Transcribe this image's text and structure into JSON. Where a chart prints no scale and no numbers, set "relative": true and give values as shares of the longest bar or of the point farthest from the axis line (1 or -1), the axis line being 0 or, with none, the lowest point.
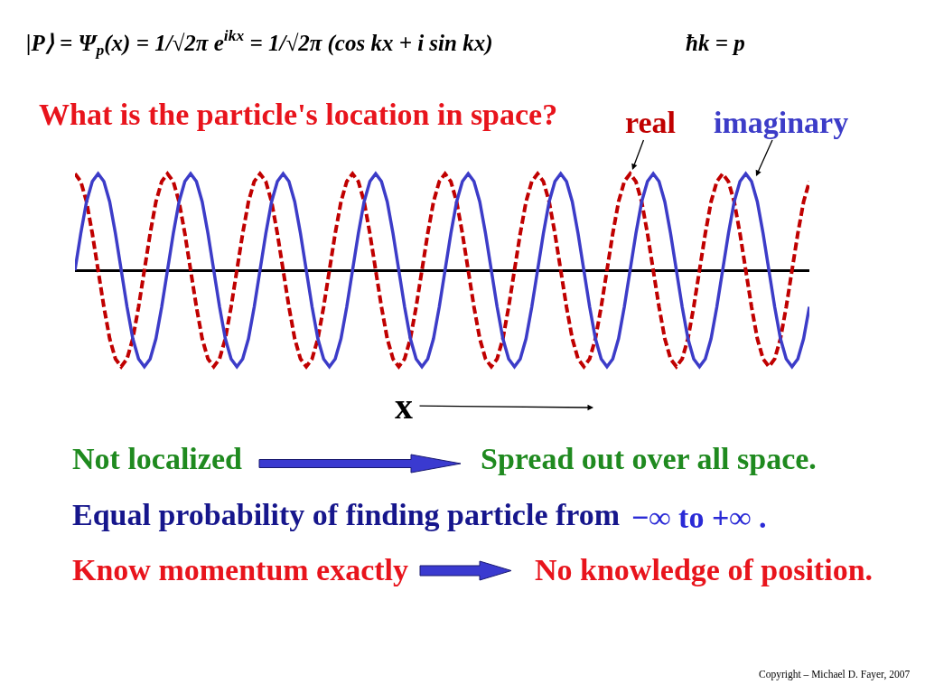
{
  "chart_data": {
    "type": "line",
    "title": "What is the particle's location in space?",
    "xlabel": "x",
    "relative": true,
    "legend": false,
    "categories": [
      null,
      null,
      null,
      null,
      null,
      null,
      null,
      null,
      null,
      null,
      null,
      null,
      null,
      null,
      null,
      null,
      null,
      null,
      null,
      null,
      null,
      null,
      null,
      null,
      null,
      null,
      null,
      null,
      null,
      null,
      null,
      null,
      null,
      null,
      null,
      null,
      null,
      null,
      null,
      null,
      null,
      null,
      null,
      null,
      null,
      null,
      null,
      null,
      null,
      null,
      null,
      null,
      null,
      null,
      null,
      null,
      null,
      null,
      null,
      null,
      null,
      null,
      null,
      null,
      null,
      null,
      null,
      null,
      null,
      null,
      null,
      null,
      null,
      null,
      null,
      null,
      null,
      null,
      null,
      null,
      null,
      null,
      null,
      null,
      null,
      null,
      null,
      null,
      null,
      null,
      null,
      null,
      null,
      null,
      null,
      null,
      null,
      null,
      null,
      null,
      null,
      null,
      null,
      null,
      null,
      null,
      null,
      null,
      null,
      null,
      null,
      null,
      null,
      null,
      null,
      null,
      null,
      null,
      null,
      null,
      null,
      null,
      null,
      null,
      null,
      null,
      null,
      null
    ],
    "series": [
      {
        "name": "real",
        "color": "#c00000",
        "line_style": "dashed",
        "values": [
          1,
          0.92,
          0.71,
          0.38,
          0,
          -0.38,
          -0.71,
          -0.92,
          -1,
          -0.92,
          -0.71,
          -0.38,
          0,
          0.38,
          0.71,
          0.92,
          1,
          0.92,
          0.71,
          0.38,
          0,
          -0.38,
          -0.71,
          -0.92,
          -1,
          -0.92,
          -0.71,
          -0.38,
          0,
          0.38,
          0.71,
          0.92,
          1,
          0.92,
          0.71,
          0.38,
          0,
          -0.38,
          -0.71,
          -0.92,
          -1,
          -0.92,
          -0.71,
          -0.38,
          0,
          0.38,
          0.71,
          0.92,
          1,
          0.92,
          0.71,
          0.38,
          0,
          -0.38,
          -0.71,
          -0.92,
          -1,
          -0.92,
          -0.71,
          -0.38,
          0,
          0.38,
          0.71,
          0.92,
          1,
          0.92,
          0.71,
          0.38,
          0,
          -0.38,
          -0.71,
          -0.92,
          -1,
          -0.92,
          -0.71,
          -0.38,
          0,
          0.38,
          0.71,
          0.92,
          1,
          0.92,
          0.71,
          0.38,
          0,
          -0.38,
          -0.71,
          -0.92,
          -1,
          -0.92,
          -0.71,
          -0.38,
          0,
          0.38,
          0.71,
          0.92,
          1,
          0.92,
          0.71,
          0.38,
          0,
          -0.38,
          -0.71,
          -0.92,
          -1,
          -0.92,
          -0.71,
          -0.38,
          0,
          0.38,
          0.71,
          0.92,
          1,
          0.92,
          0.71,
          0.38,
          0,
          -0.38,
          -0.71,
          -0.92,
          -1,
          -0.92,
          -0.71,
          -0.38,
          0,
          0.38,
          0.71,
          0.92
        ]
      },
      {
        "name": "imaginary",
        "color": "#3c3cc8",
        "line_style": "solid",
        "values": [
          0,
          0.38,
          0.71,
          0.92,
          1,
          0.92,
          0.71,
          0.38,
          0,
          -0.38,
          -0.71,
          -0.92,
          -1,
          -0.92,
          -0.71,
          -0.38,
          0,
          0.38,
          0.71,
          0.92,
          1,
          0.92,
          0.71,
          0.38,
          0,
          -0.38,
          -0.71,
          -0.92,
          -1,
          -0.92,
          -0.71,
          -0.38,
          0,
          0.38,
          0.71,
          0.92,
          1,
          0.92,
          0.71,
          0.38,
          0,
          -0.38,
          -0.71,
          -0.92,
          -1,
          -0.92,
          -0.71,
          -0.38,
          0,
          0.38,
          0.71,
          0.92,
          1,
          0.92,
          0.71,
          0.38,
          0,
          -0.38,
          -0.71,
          -0.92,
          -1,
          -0.92,
          -0.71,
          -0.38,
          0,
          0.38,
          0.71,
          0.92,
          1,
          0.92,
          0.71,
          0.38,
          0,
          -0.38,
          -0.71,
          -0.92,
          -1,
          -0.92,
          -0.71,
          -0.38,
          0,
          0.38,
          0.71,
          0.92,
          1,
          0.92,
          0.71,
          0.38,
          0,
          -0.38,
          -0.71,
          -0.92,
          -1,
          -0.92,
          -0.71,
          -0.38,
          0,
          0.38,
          0.71,
          0.92,
          1,
          0.92,
          0.71,
          0.38,
          0,
          -0.38,
          -0.71,
          -0.92,
          -1,
          -0.92,
          -0.71,
          -0.38,
          0,
          0.38,
          0.71,
          0.92,
          1,
          0.92,
          0.71,
          0.38,
          0,
          -0.38,
          -0.71,
          -0.92,
          -1,
          -0.92,
          -0.71,
          -0.38
        ]
      }
    ],
    "annotations": [
      "|P⟩ = Ψ$_{p}$(x) = 1/√2π e$^{ikx}$ = 1/√2π (cos kx + i sin kx)",
      "ħk = p",
      "Not localized",
      "Spread out over all space.",
      "Equal probability of finding particle from",
      "−∞ to +∞ .",
      "Know momentum exactly",
      "No knowledge of position.",
      "Copyright – Michael D. Fayer, 2007"
    ]
  }
}
